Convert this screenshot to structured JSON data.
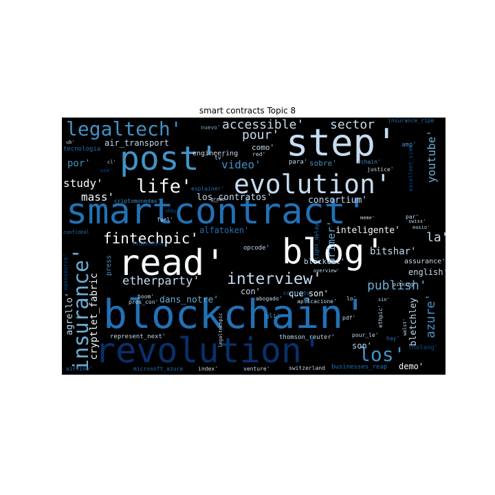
{
  "figure": {
    "title": "smart contracts Topic 8"
  },
  "palette": {
    "background": "#000000",
    "c1": "#08306b",
    "c2": "#08519c",
    "c3": "#2171b5",
    "c4": "#4292c6",
    "c5": "#6baed6",
    "c6": "#9ecae1",
    "c7": "#c6dbef",
    "c8": "#f7fbff"
  },
  "words": [
    "smartcontract'",
    "blockchain'",
    "revolution'",
    "blog'",
    "read'",
    "step'",
    "post'",
    "evolution'",
    "insurance'",
    "legaltech'",
    "life'",
    "interview'",
    "fintechpic'",
    "etherparty'",
    "los'",
    "accessible'",
    "sector",
    "pour'",
    "video'",
    "study'",
    "mass'",
    "los_contratos'",
    "consortium'",
    "inteligente'",
    "primer'",
    "la'",
    "bitshar'",
    "publish'",
    "english'",
    "assurance'",
    "youtube'",
    "azure'",
    "bletchley",
    "cryptlet_fabric",
    "agrello'",
    "dans_notre'",
    "que_son'",
    "son'",
    "demo'",
    "thomson_reuter'",
    "represent_next'",
    "air_transport",
    "por'",
    "como'",
    "sobre'",
    "para'",
    "engineering",
    "nuevo'",
    "tv'",
    "red'",
    "justice'",
    "rchain'",
    "amp'",
    "insurance_ripe",
    "excellent_view",
    "tecnologia",
    "cl'",
    "ub'",
    "usa'",
    "explainer'",
    "criptomonedas'",
    "grade",
    "fuel'",
    "meme'",
    "par'",
    "swiss'",
    "eosio'",
    "opcode'",
    "alfatoken'",
    "flight_delay",
    "confideal",
    "opensource'",
    "press",
    "blockcat'",
    "boom'",
    "pros_con'",
    "con'",
    "abogado'",
    "contrato",
    "aplicacione'",
    "lo'",
    "sin'",
    "picking'",
    "overview'",
    "gli'",
    "pdf'",
    "legaltechpic",
    "pour_le'",
    "walst'",
    "ethpic'",
    "hay'",
    "rholang'",
    "airline'",
    "microsoft_azure",
    "index'",
    "venture'",
    "switzerland",
    "businesses_reap",
    "fintechpic_'",
    "ebay'"
  ]
}
